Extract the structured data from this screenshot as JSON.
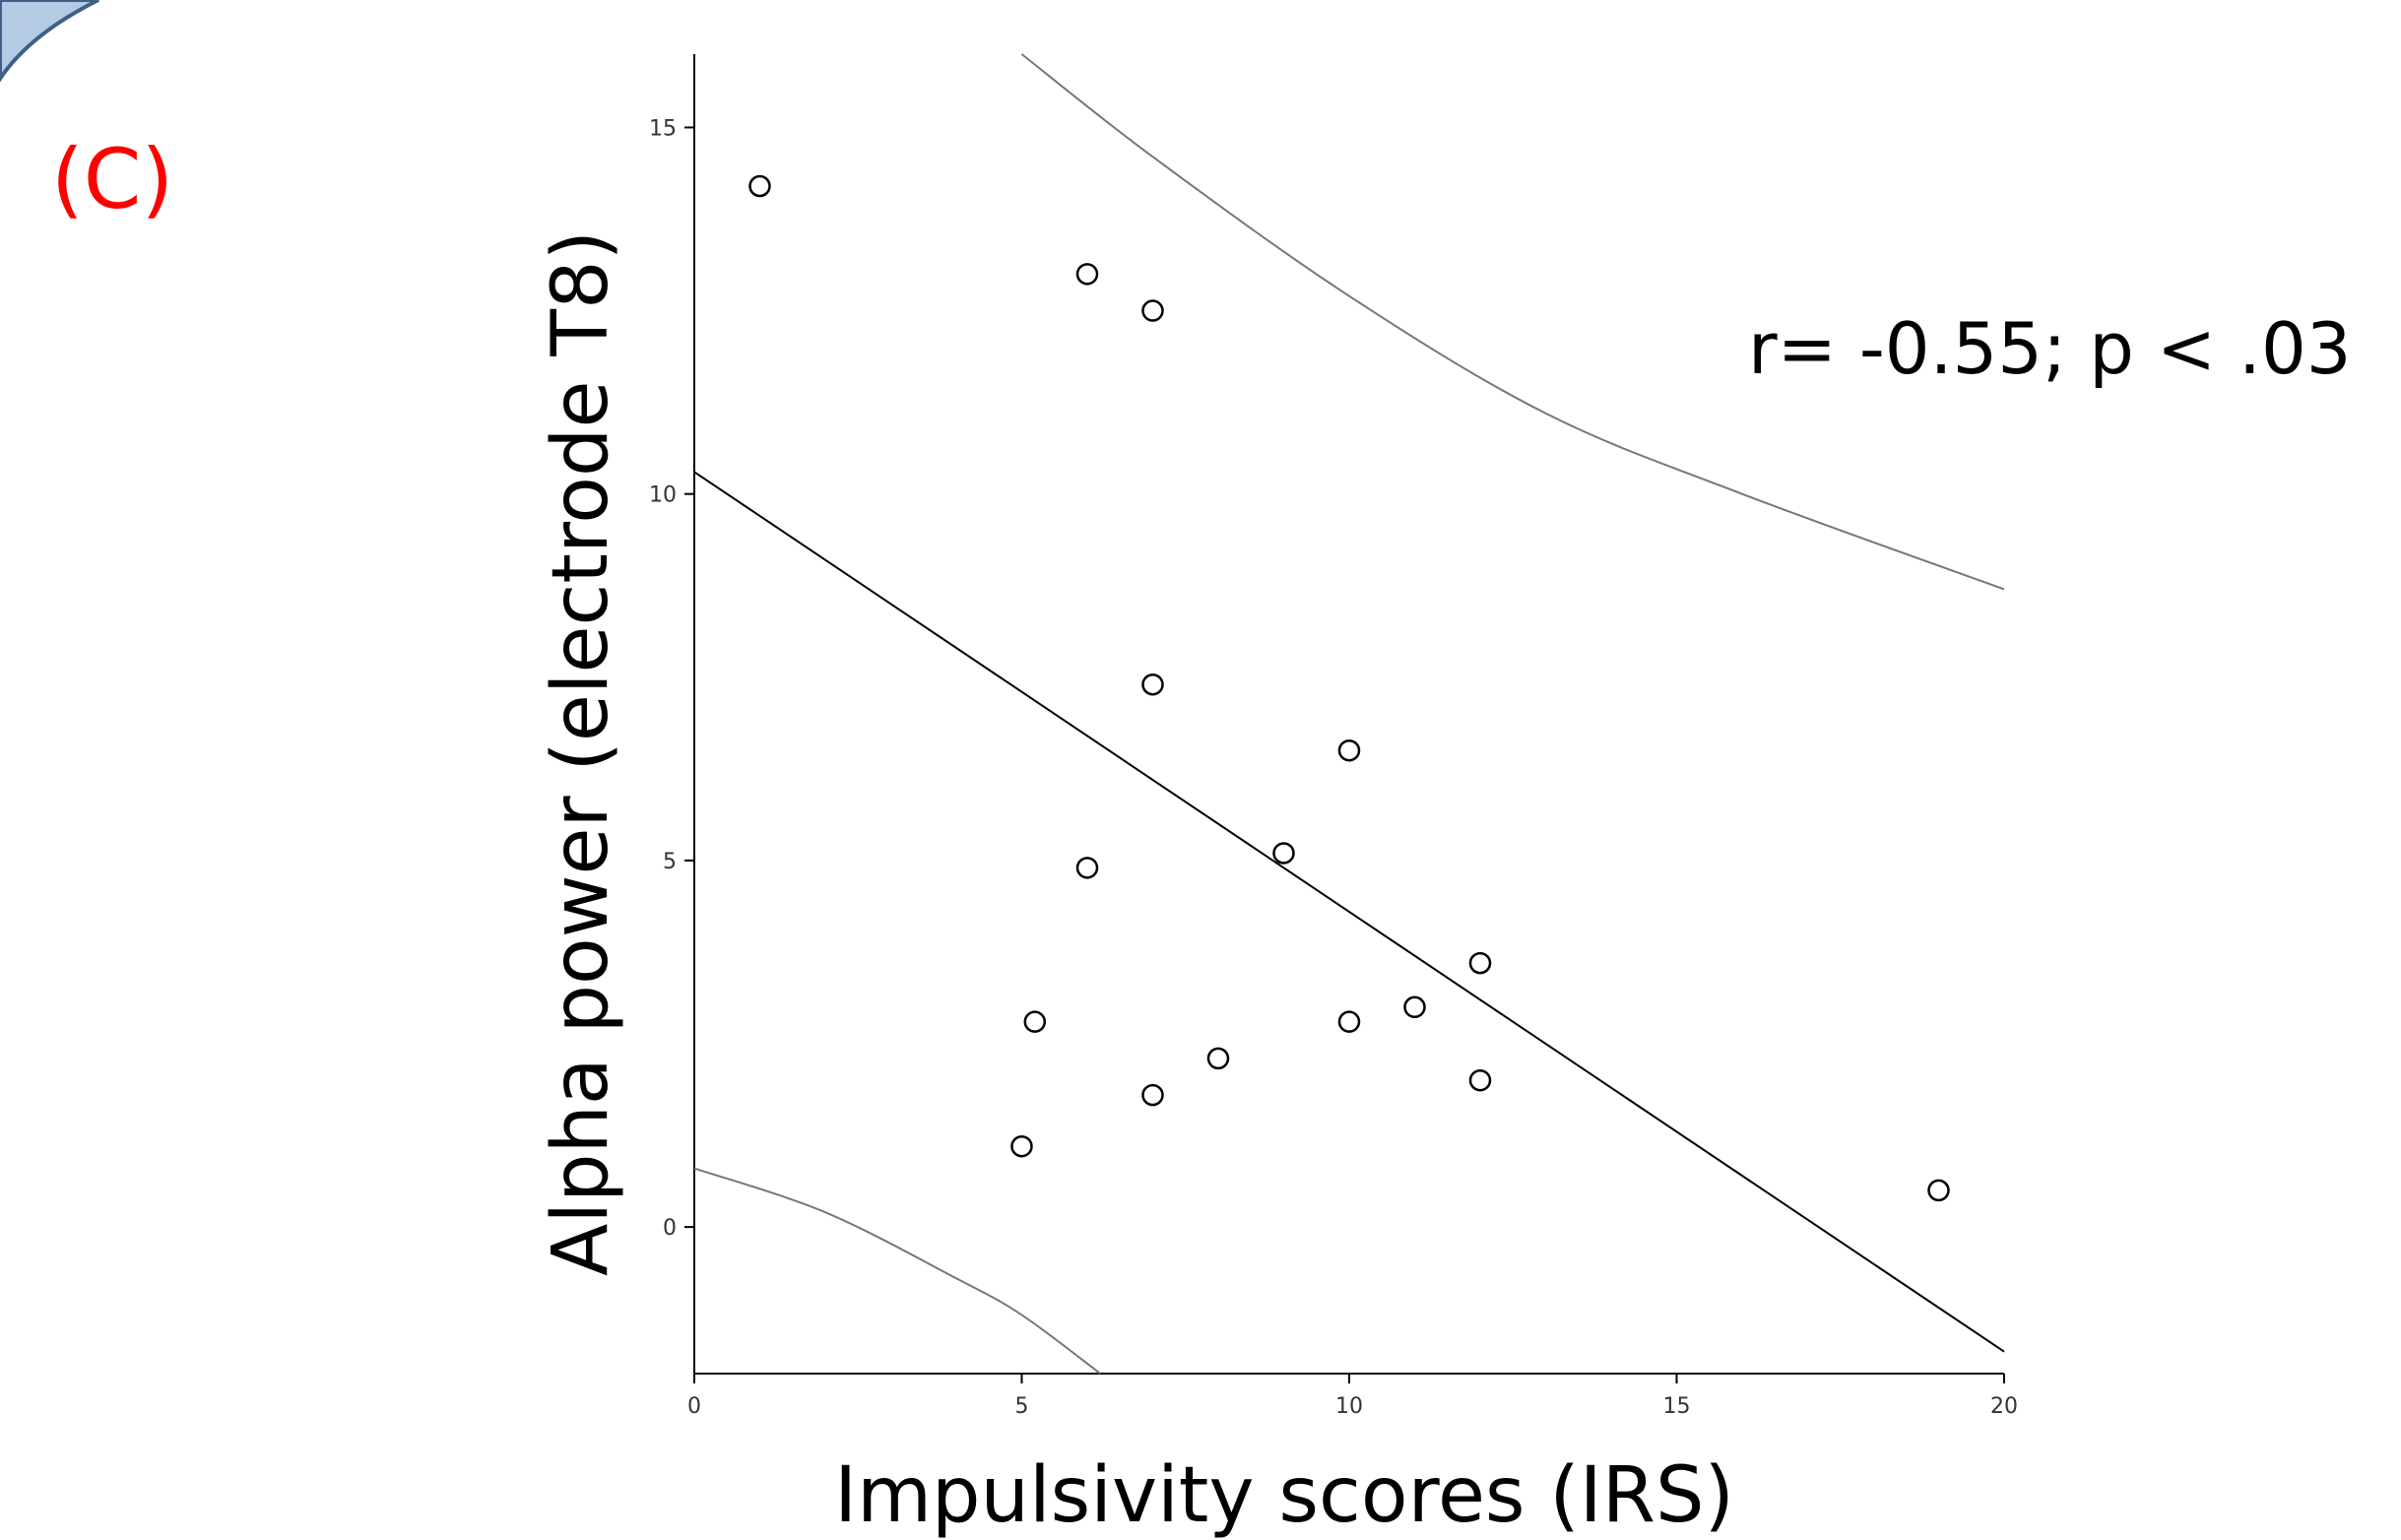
{
  "panel_label": "(C)",
  "colors": {
    "panel_label": "#ff0000",
    "arc_fill": "#b5cbe4",
    "arc_stroke": "#3e6087",
    "axis": "#000000",
    "fit_line": "#000000",
    "prediction_band": "#777777",
    "points": "#000000"
  },
  "chart_data": {
    "type": "scatter",
    "xlabel": "Impulsivity scores (IRS)",
    "ylabel": "Alpha power (electrode T8)",
    "annotation": "r= -0.55; p < .03",
    "xlim": [
      0,
      20
    ],
    "ylim": [
      -2,
      16
    ],
    "x_ticks": [
      0,
      5,
      10,
      15,
      20
    ],
    "y_ticks": [
      0,
      5,
      10,
      15
    ],
    "points": [
      {
        "x": 1,
        "y": 14.2
      },
      {
        "x": 6,
        "y": 13.0
      },
      {
        "x": 7,
        "y": 12.5
      },
      {
        "x": 7,
        "y": 7.4
      },
      {
        "x": 10,
        "y": 6.5
      },
      {
        "x": 9,
        "y": 5.1
      },
      {
        "x": 6,
        "y": 4.9
      },
      {
        "x": 12,
        "y": 3.6
      },
      {
        "x": 5.2,
        "y": 2.8
      },
      {
        "x": 10,
        "y": 2.8
      },
      {
        "x": 11,
        "y": 3.0
      },
      {
        "x": 8,
        "y": 2.3
      },
      {
        "x": 7,
        "y": 1.8
      },
      {
        "x": 12,
        "y": 2.0
      },
      {
        "x": 5,
        "y": 1.1
      },
      {
        "x": 19,
        "y": 0.5
      }
    ],
    "fit_line": {
      "x": [
        0,
        20
      ],
      "y": [
        10.3,
        -1.7
      ]
    },
    "upper_band": {
      "x": [
        5,
        7,
        10,
        13,
        16,
        20
      ],
      "y": [
        16.0,
        14.6,
        12.7,
        11.1,
        10.0,
        8.7
      ]
    },
    "lower_band": {
      "x": [
        0,
        2,
        4,
        5,
        6.2
      ],
      "y": [
        0.8,
        0.2,
        -0.7,
        -1.2,
        -2.0
      ]
    }
  }
}
